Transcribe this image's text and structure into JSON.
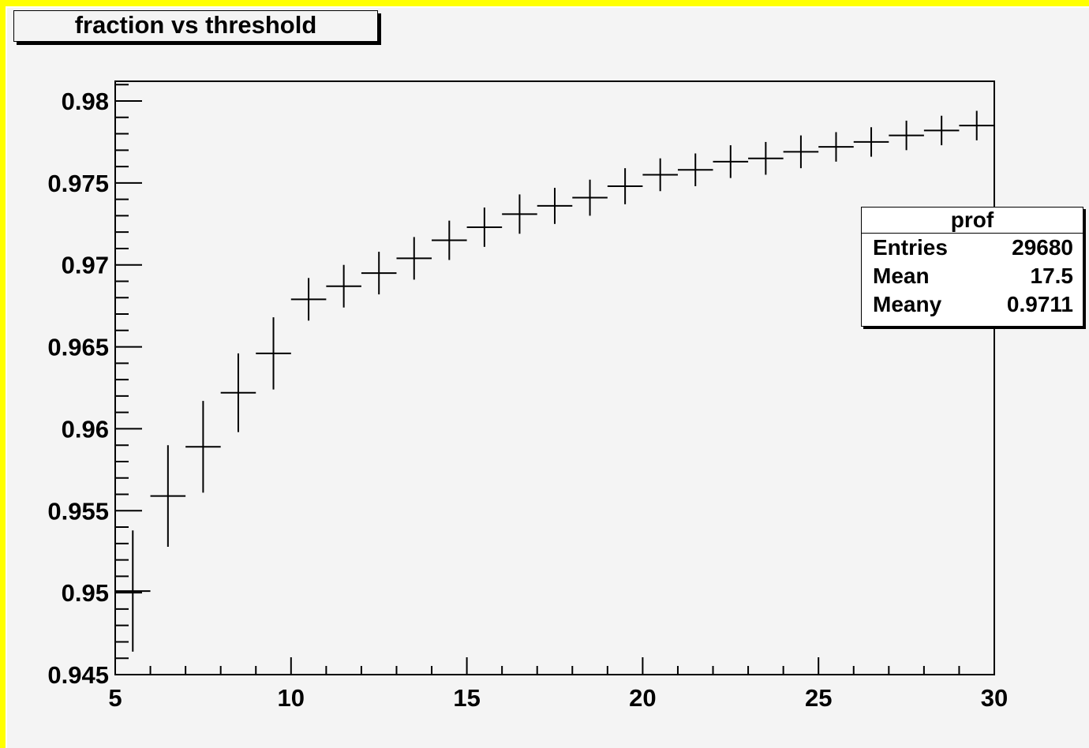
{
  "chart_data": {
    "type": "scatter",
    "title": "fraction vs threshold",
    "xlabel": "",
    "ylabel": "",
    "xlim": [
      5,
      30
    ],
    "ylim": [
      0.945,
      0.981
    ],
    "x_ticks": [
      5,
      10,
      15,
      20,
      25,
      30
    ],
    "x_tick_labels": [
      "5",
      "10",
      "15",
      "20",
      "25",
      "30"
    ],
    "y_ticks": [
      0.945,
      0.95,
      0.955,
      0.96,
      0.965,
      0.97,
      0.975,
      0.98
    ],
    "y_tick_labels": [
      "0.945",
      "0.95",
      "0.955",
      "0.96",
      "0.965",
      "0.97",
      "0.975",
      "0.98"
    ],
    "grid": false,
    "bin_width": 1,
    "points": [
      {
        "x": 5.5,
        "y": 0.9501,
        "err": 0.0037
      },
      {
        "x": 6.5,
        "y": 0.9559,
        "err": 0.0031
      },
      {
        "x": 7.5,
        "y": 0.9589,
        "err": 0.0028
      },
      {
        "x": 8.5,
        "y": 0.9622,
        "err": 0.0024
      },
      {
        "x": 9.5,
        "y": 0.9646,
        "err": 0.0022
      },
      {
        "x": 10.5,
        "y": 0.9679,
        "err": 0.0013
      },
      {
        "x": 11.5,
        "y": 0.9687,
        "err": 0.0013
      },
      {
        "x": 12.5,
        "y": 0.9695,
        "err": 0.0013
      },
      {
        "x": 13.5,
        "y": 0.9704,
        "err": 0.0013
      },
      {
        "x": 14.5,
        "y": 0.9715,
        "err": 0.0012
      },
      {
        "x": 15.5,
        "y": 0.9723,
        "err": 0.0012
      },
      {
        "x": 16.5,
        "y": 0.9731,
        "err": 0.0012
      },
      {
        "x": 17.5,
        "y": 0.9736,
        "err": 0.0011
      },
      {
        "x": 18.5,
        "y": 0.9741,
        "err": 0.0011
      },
      {
        "x": 19.5,
        "y": 0.9748,
        "err": 0.0011
      },
      {
        "x": 20.5,
        "y": 0.9755,
        "err": 0.001
      },
      {
        "x": 21.5,
        "y": 0.9758,
        "err": 0.001
      },
      {
        "x": 22.5,
        "y": 0.9763,
        "err": 0.001
      },
      {
        "x": 23.5,
        "y": 0.9765,
        "err": 0.001
      },
      {
        "x": 24.5,
        "y": 0.9769,
        "err": 0.001
      },
      {
        "x": 25.5,
        "y": 0.9772,
        "err": 0.0009
      },
      {
        "x": 26.5,
        "y": 0.9775,
        "err": 0.0009
      },
      {
        "x": 27.5,
        "y": 0.9779,
        "err": 0.0009
      },
      {
        "x": 28.5,
        "y": 0.9782,
        "err": 0.0009
      },
      {
        "x": 29.5,
        "y": 0.9785,
        "err": 0.0009
      }
    ],
    "stats_box": {
      "title": "prof",
      "rows": [
        {
          "label": "Entries",
          "value": "29680"
        },
        {
          "label": "Mean",
          "value": "17.5"
        },
        {
          "label": "Meany",
          "value": "0.9711"
        }
      ]
    },
    "colors": {
      "frame": "#ffff00",
      "background": "#f4f4f4",
      "marker": "#000000"
    }
  }
}
